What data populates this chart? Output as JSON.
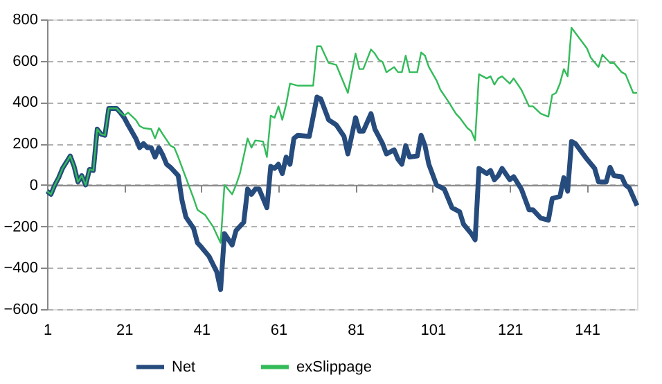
{
  "chart_data": {
    "type": "line",
    "xlim": [
      1,
      154
    ],
    "xticks": [
      1,
      21,
      41,
      61,
      81,
      101,
      121,
      141
    ],
    "ylim": [
      -600,
      800
    ],
    "yticks": [
      -600,
      -400,
      -200,
      0,
      200,
      400,
      600,
      800
    ],
    "grid": "y",
    "legend": "bottom",
    "line_style": "solid",
    "marker": "none",
    "series": [
      {
        "name": "Net",
        "color": "#264b7d",
        "x": [
          1,
          2,
          3,
          4,
          5,
          6,
          7,
          8,
          9,
          10,
          11,
          12,
          13,
          14,
          15,
          16,
          17,
          19,
          20,
          21,
          22,
          24,
          25,
          26,
          27,
          28,
          29,
          30,
          31,
          32,
          33,
          35,
          36,
          37,
          39,
          40,
          41,
          43,
          45,
          46,
          47,
          49,
          50,
          52,
          53,
          54,
          55,
          56,
          57,
          58,
          59,
          60,
          61,
          62,
          63,
          64,
          65,
          66,
          69,
          71,
          72,
          74,
          76,
          78,
          79,
          81,
          82,
          83,
          85,
          86,
          88,
          89,
          91,
          92,
          93,
          94,
          95,
          97,
          98,
          99,
          100,
          102,
          104,
          106,
          108,
          109,
          111,
          112,
          113,
          115,
          116,
          117,
          118,
          119,
          121,
          122,
          124,
          126,
          127,
          129,
          131,
          132,
          134,
          135,
          136,
          137,
          138,
          141,
          143,
          144,
          146,
          147,
          148,
          150,
          151,
          152,
          154
        ],
        "values": [
          -30,
          -45,
          0,
          35,
          80,
          110,
          140,
          90,
          15,
          45,
          0,
          75,
          70,
          270,
          245,
          240,
          370,
          370,
          350,
          325,
          290,
          225,
          180,
          200,
          180,
          180,
          135,
          180,
          145,
          100,
          85,
          45,
          -75,
          -155,
          -210,
          -280,
          -300,
          -345,
          -420,
          -505,
          -235,
          -290,
          -220,
          -180,
          -20,
          -45,
          -20,
          -20,
          -65,
          -110,
          90,
          80,
          100,
          55,
          135,
          100,
          225,
          240,
          235,
          425,
          415,
          315,
          290,
          235,
          150,
          325,
          260,
          260,
          345,
          270,
          200,
          150,
          170,
          125,
          100,
          190,
          135,
          140,
          240,
          190,
          100,
          0,
          -20,
          -110,
          -130,
          -190,
          -235,
          -265,
          80,
          55,
          70,
          25,
          45,
          80,
          25,
          40,
          -20,
          -120,
          -120,
          -160,
          -170,
          -65,
          -55,
          35,
          -30,
          210,
          200,
          125,
          80,
          15,
          15,
          85,
          45,
          40,
          0,
          -15,
          -100
        ]
      },
      {
        "name": "exSlippage",
        "color": "#33bb5a",
        "x": [
          1,
          2,
          3,
          4,
          5,
          6,
          7,
          8,
          9,
          10,
          11,
          12,
          13,
          14,
          15,
          16,
          17,
          19,
          20,
          21,
          22,
          24,
          25,
          26,
          28,
          29,
          30,
          31,
          33,
          34,
          35,
          37,
          39,
          40,
          42,
          44,
          46,
          47,
          49,
          50,
          51,
          53,
          54,
          55,
          57,
          58,
          59,
          60,
          61,
          62,
          63,
          64,
          66,
          70,
          71,
          72,
          74,
          76,
          79,
          81,
          82,
          83,
          85,
          86,
          87,
          88,
          89,
          91,
          92,
          93,
          94,
          95,
          97,
          98,
          99,
          100,
          102,
          103,
          105,
          107,
          108,
          110,
          111,
          112,
          113,
          115,
          116,
          117,
          118,
          119,
          121,
          122,
          124,
          126,
          127,
          129,
          131,
          132,
          133,
          134,
          135,
          136,
          137,
          138,
          141,
          142,
          144,
          145,
          147,
          148,
          150,
          151,
          153,
          154
        ],
        "values": [
          -30,
          -45,
          0,
          35,
          80,
          110,
          140,
          90,
          15,
          45,
          0,
          75,
          70,
          270,
          245,
          240,
          370,
          370,
          350,
          335,
          350,
          315,
          285,
          275,
          270,
          225,
          275,
          245,
          190,
          180,
          135,
          35,
          -65,
          -120,
          -145,
          -200,
          -280,
          0,
          -45,
          0,
          55,
          225,
          180,
          215,
          210,
          135,
          335,
          325,
          380,
          315,
          390,
          490,
          480,
          480,
          670,
          670,
          590,
          580,
          445,
          635,
          560,
          560,
          655,
          635,
          605,
          595,
          545,
          570,
          545,
          545,
          625,
          545,
          545,
          640,
          625,
          570,
          505,
          460,
          405,
          345,
          325,
          275,
          260,
          215,
          535,
          515,
          525,
          485,
          515,
          525,
          490,
          515,
          460,
          380,
          380,
          345,
          330,
          435,
          445,
          490,
          560,
          525,
          760,
          735,
          660,
          615,
          570,
          630,
          590,
          590,
          545,
          535,
          445,
          445
        ]
      }
    ]
  }
}
